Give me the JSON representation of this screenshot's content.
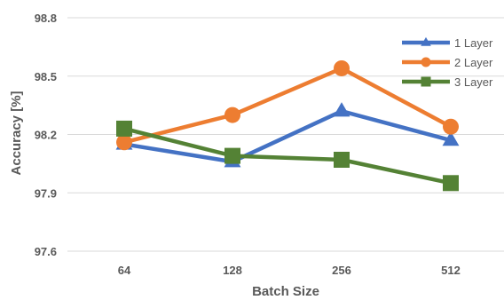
{
  "chart_data": {
    "type": "line",
    "categories": [
      "64",
      "128",
      "256",
      "512"
    ],
    "xlabel": "Batch Size",
    "ylabel": "Accuracy [%]",
    "ylim": [
      97.6,
      98.8
    ],
    "yticks": [
      "97.6",
      "97.9",
      "98.2",
      "98.5",
      "98.8"
    ],
    "grid": true,
    "legend_position": "top-right",
    "series": [
      {
        "name": "1 Layer",
        "values": [
          98.15,
          98.06,
          98.32,
          98.17
        ],
        "color": "#4472C4",
        "marker": "triangle"
      },
      {
        "name": "2 Layer",
        "values": [
          98.16,
          98.3,
          98.54,
          98.24
        ],
        "color": "#ED7D31",
        "marker": "circle"
      },
      {
        "name": "3 Layer",
        "values": [
          98.23,
          98.09,
          98.07,
          97.95
        ],
        "color": "#548235",
        "marker": "square"
      }
    ]
  }
}
